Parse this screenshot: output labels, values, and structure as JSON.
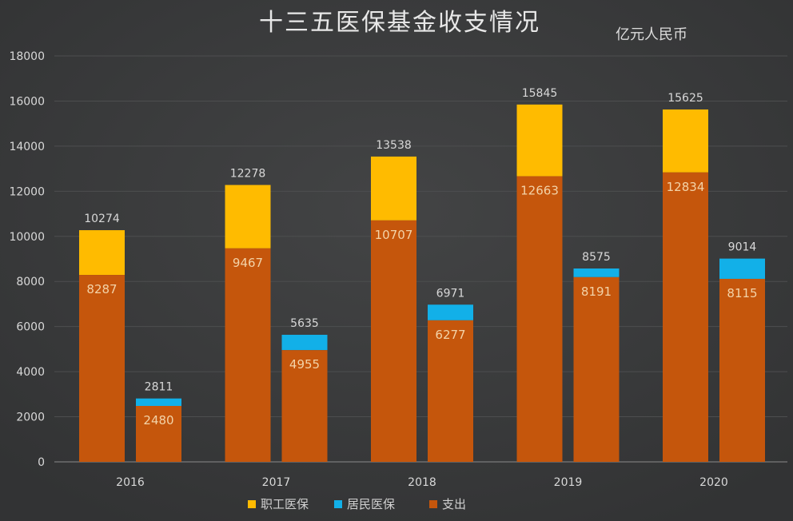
{
  "chart_data": {
    "type": "bar",
    "title": "十三五医保基金收支情况",
    "unit": "亿元人民币",
    "categories": [
      "2016",
      "2017",
      "2018",
      "2019",
      "2020"
    ],
    "series": [
      {
        "name": "职工医保",
        "color": "#ffbb00",
        "income": [
          10274,
          12278,
          13538,
          15845,
          15625
        ],
        "expenditure": [
          8287,
          9467,
          10707,
          12663,
          12834
        ]
      },
      {
        "name": "居民医保",
        "color": "#12b0e8",
        "income": [
          2811,
          5635,
          6971,
          8575,
          9014
        ],
        "expenditure": [
          2480,
          4955,
          6277,
          8191,
          8115
        ]
      }
    ],
    "expenditure_legend": {
      "name": "支出",
      "color": "#c5560c"
    },
    "yticks": [
      "0",
      "2000",
      "4000",
      "6000",
      "8000",
      "10000",
      "12000",
      "14000",
      "16000",
      "18000"
    ],
    "ylim": [
      0,
      18000
    ],
    "grid": true,
    "legend_position": "bottom"
  }
}
